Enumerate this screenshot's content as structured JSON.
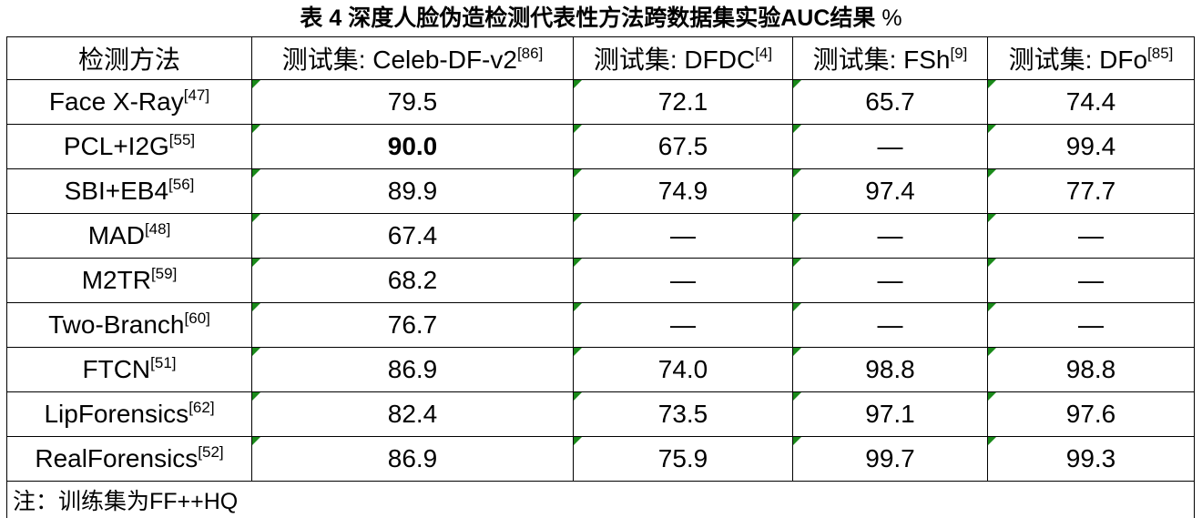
{
  "caption": {
    "label": "表 4",
    "title": "深度人脸伪造检测代表性方法跨数据集实验AUC结果",
    "unit": "%"
  },
  "header": [
    {
      "text": "检测方法",
      "ref": ""
    },
    {
      "text": "测试集: Celeb-DF-v2",
      "ref": "[86]"
    },
    {
      "text": "测试集: DFDC",
      "ref": "[4]"
    },
    {
      "text": "测试集: FSh",
      "ref": "[9]"
    },
    {
      "text": "测试集: DFo",
      "ref": "[85]"
    }
  ],
  "rows": [
    {
      "method": "Face X-Ray",
      "ref": "[47]",
      "values": [
        "79.5",
        "72.1",
        "65.7",
        "74.4"
      ]
    },
    {
      "method": "PCL+I2G",
      "ref": "[55]",
      "values": [
        "90.0",
        "67.5",
        "—",
        "99.4"
      ]
    },
    {
      "method": "SBI+EB4",
      "ref": "[56]",
      "values": [
        "89.9",
        "74.9",
        "97.4",
        "77.7"
      ]
    },
    {
      "method": "MAD",
      "ref": "[48]",
      "values": [
        "67.4",
        "—",
        "—",
        "—"
      ]
    },
    {
      "method": "M2TR",
      "ref": "[59]",
      "values": [
        "68.2",
        "—",
        "—",
        "—"
      ]
    },
    {
      "method": "Two-Branch",
      "ref": "[60]",
      "values": [
        "76.7",
        "—",
        "—",
        "—"
      ]
    },
    {
      "method": "FTCN",
      "ref": "[51]",
      "values": [
        "86.9",
        "74.0",
        "98.8",
        "98.8"
      ]
    },
    {
      "method": "LipForensics",
      "ref": "[62]",
      "values": [
        "82.4",
        "73.5",
        "97.1",
        "97.6"
      ]
    },
    {
      "method": "RealForensics",
      "ref": "[52]",
      "values": [
        "86.9",
        "75.9",
        "99.7",
        "99.3"
      ]
    }
  ],
  "note": "注：训练集为FF++HQ",
  "marker_color": "#1a8a1a"
}
